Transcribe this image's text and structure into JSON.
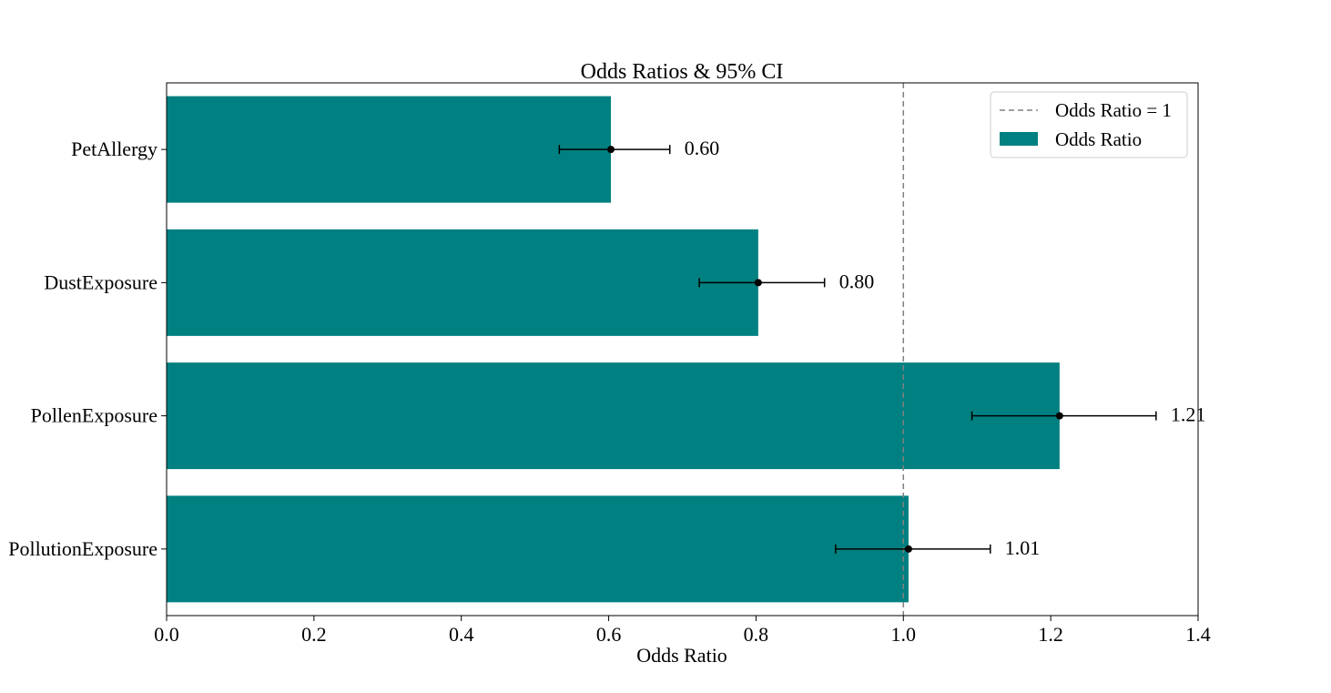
{
  "chart_data": {
    "type": "bar",
    "orientation": "horizontal",
    "title": "Odds Ratios & 95% CI",
    "xlabel": "Odds Ratio",
    "ylabel": "",
    "xlim": [
      0.0,
      1.4
    ],
    "x_ticks": [
      "0.0",
      "0.2",
      "0.4",
      "0.6",
      "0.8",
      "1.0",
      "1.2",
      "1.4"
    ],
    "categories": [
      "PetAllergy",
      "DustExposure",
      "PollenExposure",
      "PollutionExposure"
    ],
    "series": [
      {
        "name": "Odds Ratio",
        "color": "#008080",
        "values": [
          0.603,
          0.803,
          1.212,
          1.007
        ],
        "ci_lower": [
          0.533,
          0.723,
          1.093,
          0.908
        ],
        "ci_upper": [
          0.683,
          0.893,
          1.343,
          1.118
        ],
        "value_labels": [
          "0.60",
          "0.80",
          "1.21",
          "1.01"
        ]
      }
    ],
    "reference_line": {
      "x": 1.0,
      "label": "Odds Ratio = 1",
      "style": "dashed",
      "color": "#808080"
    },
    "legend": {
      "position": "top-right",
      "entries": [
        "Odds Ratio = 1",
        "Odds Ratio"
      ]
    },
    "grid": false
  }
}
